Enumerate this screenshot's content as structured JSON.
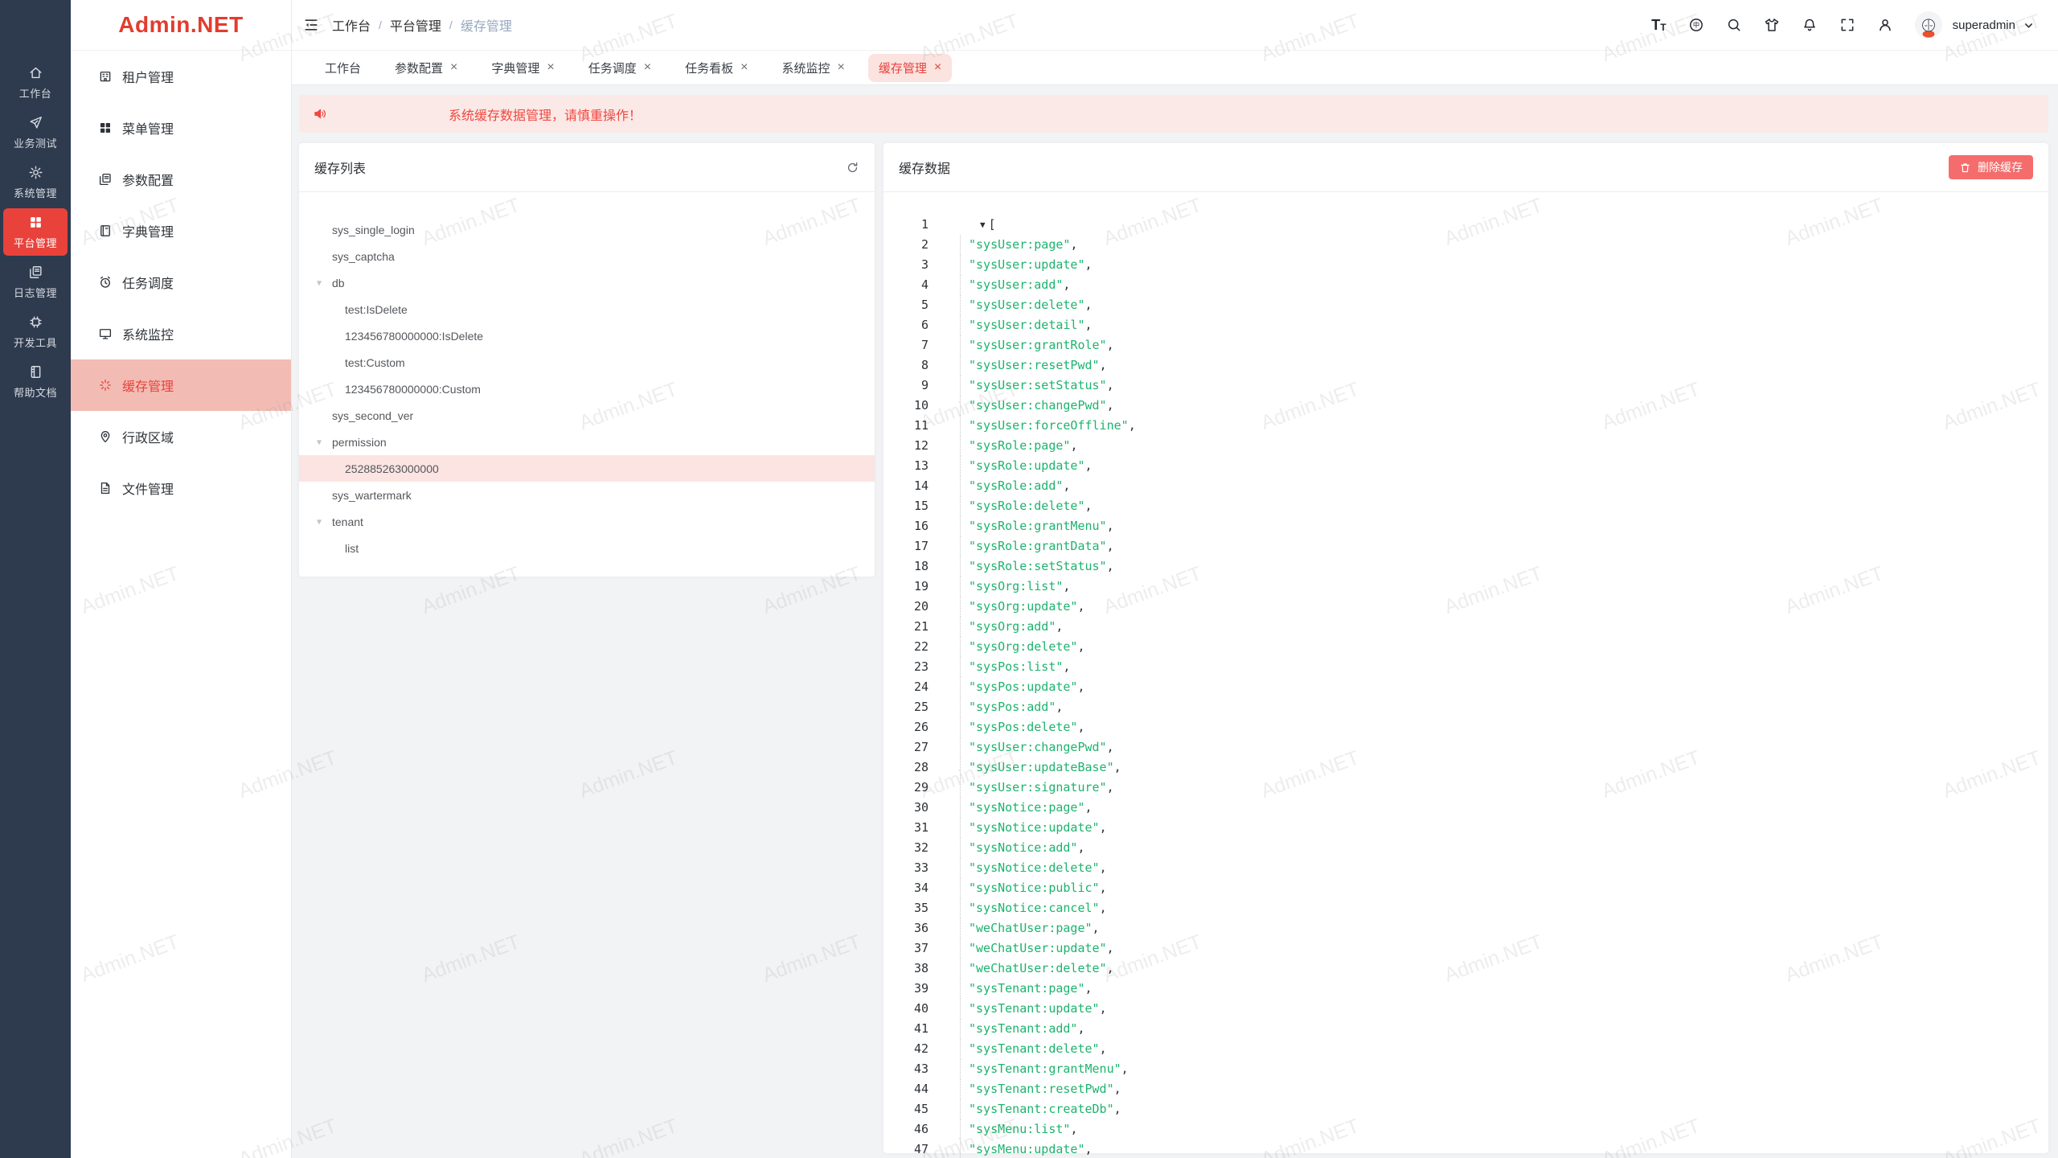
{
  "watermark": {
    "text": "Admin.NET"
  },
  "rail": {
    "items": [
      {
        "label": "工作台",
        "icon": "home",
        "active": false
      },
      {
        "label": "业务测试",
        "icon": "send",
        "active": false
      },
      {
        "label": "系统管理",
        "icon": "gear",
        "active": false
      },
      {
        "label": "平台管理",
        "icon": "grid",
        "active": true
      },
      {
        "label": "日志管理",
        "icon": "docs",
        "active": false
      },
      {
        "label": "开发工具",
        "icon": "chip",
        "active": false
      },
      {
        "label": "帮助文档",
        "icon": "book",
        "active": false
      }
    ]
  },
  "submenu": {
    "logo": "Admin.NET",
    "items": [
      {
        "label": "租户管理",
        "icon": "building",
        "active": false
      },
      {
        "label": "菜单管理",
        "icon": "grid",
        "active": false
      },
      {
        "label": "参数配置",
        "icon": "docs",
        "active": false
      },
      {
        "label": "字典管理",
        "icon": "dict",
        "active": false
      },
      {
        "label": "任务调度",
        "icon": "alarm",
        "active": false
      },
      {
        "label": "系统监控",
        "icon": "monitor",
        "active": false
      },
      {
        "label": "缓存管理",
        "icon": "spinner",
        "active": true
      },
      {
        "label": "行政区域",
        "icon": "pin",
        "active": false
      },
      {
        "label": "文件管理",
        "icon": "file",
        "active": false
      }
    ]
  },
  "header": {
    "breadcrumb": [
      "工作台",
      "平台管理",
      "缓存管理"
    ],
    "username": "superadmin",
    "icons": [
      "font-size",
      "language",
      "search",
      "theme",
      "notification",
      "fullscreen",
      "user"
    ]
  },
  "tabs": [
    {
      "label": "工作台",
      "closable": false,
      "active": false
    },
    {
      "label": "参数配置",
      "closable": true,
      "active": false
    },
    {
      "label": "字典管理",
      "closable": true,
      "active": false
    },
    {
      "label": "任务调度",
      "closable": true,
      "active": false
    },
    {
      "label": "任务看板",
      "closable": true,
      "active": false
    },
    {
      "label": "系统监控",
      "closable": true,
      "active": false
    },
    {
      "label": "缓存管理",
      "closable": true,
      "active": true
    }
  ],
  "alert": {
    "text": "系统缓存数据管理，请慎重操作！"
  },
  "cache_list": {
    "title": "缓存列表",
    "items": [
      {
        "label": "sys_single_login",
        "depth": 1,
        "arrow": false,
        "selected": false
      },
      {
        "label": "sys_captcha",
        "depth": 1,
        "arrow": false,
        "selected": false
      },
      {
        "label": "db",
        "depth": 1,
        "arrow": true,
        "selected": false
      },
      {
        "label": "test:IsDelete",
        "depth": 2,
        "arrow": false,
        "selected": false
      },
      {
        "label": "123456780000000:IsDelete",
        "depth": 2,
        "arrow": false,
        "selected": false
      },
      {
        "label": "test:Custom",
        "depth": 2,
        "arrow": false,
        "selected": false
      },
      {
        "label": "123456780000000:Custom",
        "depth": 2,
        "arrow": false,
        "selected": false
      },
      {
        "label": "sys_second_ver",
        "depth": 1,
        "arrow": false,
        "selected": false
      },
      {
        "label": "permission",
        "depth": 1,
        "arrow": true,
        "selected": false
      },
      {
        "label": "252885263000000",
        "depth": 2,
        "arrow": false,
        "selected": true
      },
      {
        "label": "sys_wartermark",
        "depth": 1,
        "arrow": false,
        "selected": false
      },
      {
        "label": "tenant",
        "depth": 1,
        "arrow": true,
        "selected": false
      },
      {
        "label": "list",
        "depth": 2,
        "arrow": false,
        "selected": false
      }
    ]
  },
  "cache_data": {
    "title": "缓存数据",
    "delete_label": "删除缓存",
    "json_open_bracket": "[",
    "json_items": [
      "sysUser:page",
      "sysUser:update",
      "sysUser:add",
      "sysUser:delete",
      "sysUser:detail",
      "sysUser:grantRole",
      "sysUser:resetPwd",
      "sysUser:setStatus",
      "sysUser:changePwd",
      "sysUser:forceOffline",
      "sysRole:page",
      "sysRole:update",
      "sysRole:add",
      "sysRole:delete",
      "sysRole:grantMenu",
      "sysRole:grantData",
      "sysRole:setStatus",
      "sysOrg:list",
      "sysOrg:update",
      "sysOrg:add",
      "sysOrg:delete",
      "sysPos:list",
      "sysPos:update",
      "sysPos:add",
      "sysPos:delete",
      "sysUser:changePwd",
      "sysUser:updateBase",
      "sysUser:signature",
      "sysNotice:page",
      "sysNotice:update",
      "sysNotice:add",
      "sysNotice:delete",
      "sysNotice:public",
      "sysNotice:cancel",
      "weChatUser:page",
      "weChatUser:update",
      "weChatUser:delete",
      "sysTenant:page",
      "sysTenant:update",
      "sysTenant:add",
      "sysTenant:delete",
      "sysTenant:grantMenu",
      "sysTenant:resetPwd",
      "sysTenant:createDb",
      "sysMenu:list",
      "sysMenu:update"
    ]
  },
  "colors": {
    "accent_red": "#e8423b",
    "danger_button": "#f56c6c",
    "menu_active_bg": "#f2bcb4",
    "tab_active_bg": "#fbe3e0",
    "alert_bg": "#fbe9e7",
    "selected_row_bg": "#fbe4e1",
    "json_string_green": "#1db36e",
    "rail_bg": "#2e3a4d"
  }
}
